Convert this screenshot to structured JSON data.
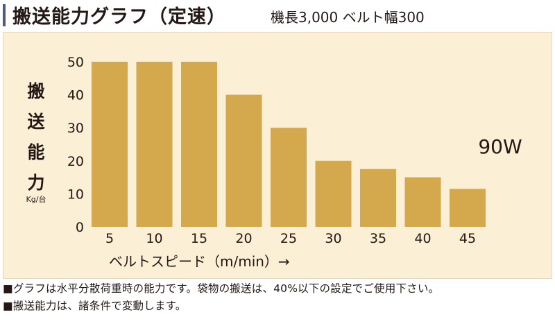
{
  "header": {
    "title": "搬送能力グラフ（定速）",
    "spec": "機長3,000 ベルト幅300"
  },
  "chart_data": {
    "type": "bar",
    "categories": [
      "5",
      "10",
      "15",
      "20",
      "25",
      "30",
      "35",
      "40",
      "45"
    ],
    "values": [
      50,
      50,
      50,
      40,
      30,
      20,
      17.5,
      15,
      11.5
    ],
    "yticks": [
      0,
      10,
      20,
      30,
      40,
      50
    ],
    "ylim": [
      0,
      50
    ],
    "ylabel": "搬送能力",
    "ylabel_unit": "Kg/台",
    "xlabel": "ベルトスピード（m/min）→",
    "annotation": "90W",
    "bar_color": "#d4a84c",
    "background_color": "#fbefd6",
    "grid": false
  },
  "notes": [
    "■グラフは水平分散荷重時の能力です。袋物の搬送は、40%以下の設定でご使用下さい。",
    "■搬送能力は、諸条件で変動します。"
  ]
}
